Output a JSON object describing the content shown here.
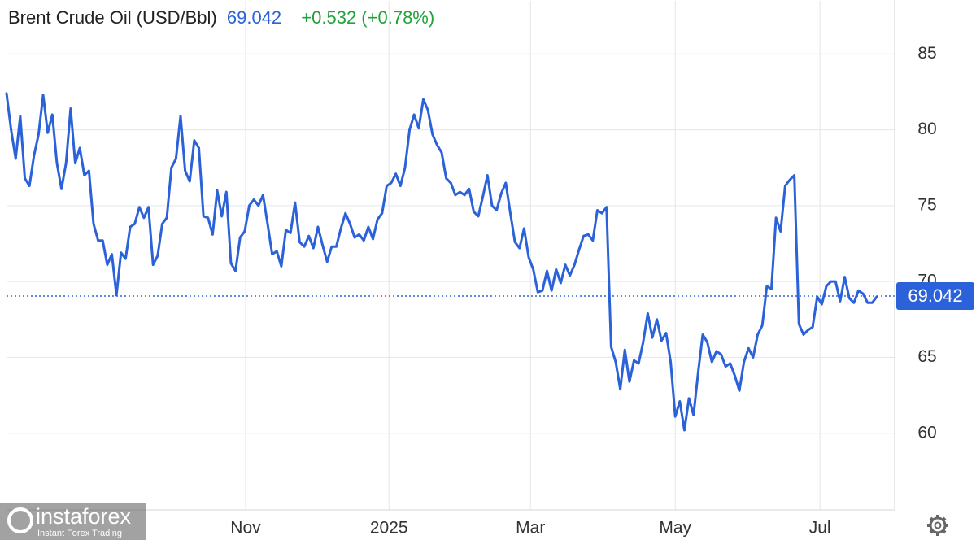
{
  "chart_data": {
    "type": "line",
    "title": "Brent Crude Oil (USD/Bbl)",
    "last_price": 69.042,
    "change": "+0.532 (+0.78%)",
    "watermark": {
      "brand": "instaforex",
      "tagline": "Instant Forex Trading"
    },
    "xlim": [
      0,
      190
    ],
    "xticks": [
      {
        "value": 52.2,
        "label": "Nov"
      },
      {
        "value": 83.5,
        "label": "2025"
      },
      {
        "value": 114.4,
        "label": "Mar"
      },
      {
        "value": 146,
        "label": "May"
      },
      {
        "value": 177.6,
        "label": "Jul"
      }
    ],
    "ylim": [
      55,
      88.5
    ],
    "yticks": [
      60,
      65,
      70,
      75,
      80,
      85
    ],
    "grid": true,
    "series": [
      {
        "name": "Brent Crude Oil",
        "color": "#2b62d9",
        "values": [
          82.4,
          80.0,
          78.1,
          80.9,
          76.8,
          76.3,
          78.3,
          79.7,
          82.3,
          79.8,
          81.0,
          77.8,
          76.1,
          77.8,
          81.4,
          77.8,
          78.8,
          77.0,
          77.3,
          73.8,
          72.7,
          72.7,
          71.1,
          71.8,
          69.1,
          71.9,
          71.5,
          73.6,
          73.8,
          74.9,
          74.2,
          74.9,
          71.1,
          71.7,
          73.8,
          74.2,
          77.5,
          78.1,
          80.9,
          77.3,
          76.6,
          79.3,
          78.8,
          74.3,
          74.2,
          73.1,
          76.0,
          74.3,
          75.9,
          71.2,
          70.7,
          72.9,
          73.3,
          75.0,
          75.4,
          75.0,
          75.7,
          73.8,
          71.8,
          72.0,
          71.0,
          73.4,
          73.2,
          75.2,
          72.6,
          72.3,
          73.0,
          72.2,
          73.6,
          72.4,
          71.3,
          72.3,
          72.3,
          73.5,
          74.5,
          73.8,
          72.9,
          73.1,
          72.7,
          73.6,
          72.8,
          74.1,
          74.5,
          76.3,
          76.5,
          77.1,
          76.3,
          77.5,
          80.0,
          81.0,
          80.1,
          82.0,
          81.3,
          79.7,
          79.0,
          78.5,
          76.8,
          76.5,
          75.7,
          75.9,
          75.7,
          76.1,
          74.6,
          74.3,
          75.6,
          77.0,
          75.0,
          74.7,
          75.8,
          76.5,
          74.5,
          72.6,
          72.2,
          73.5,
          71.6,
          70.8,
          69.3,
          69.4,
          70.7,
          69.4,
          70.8,
          69.9,
          71.1,
          70.4,
          71.1,
          72.1,
          73.0,
          73.1,
          72.7,
          74.7,
          74.5,
          74.9,
          65.7,
          64.7,
          62.9,
          65.5,
          63.4,
          64.8,
          64.6,
          66.0,
          67.9,
          66.3,
          67.5,
          66.1,
          66.6,
          64.7,
          61.1,
          62.1,
          60.2,
          62.3,
          61.2,
          64.0,
          66.5,
          66.0,
          64.7,
          65.4,
          65.2,
          64.4,
          64.6,
          63.8,
          62.8,
          64.7,
          65.6,
          65.0,
          66.5,
          67.1,
          69.7,
          69.5,
          74.2,
          73.3,
          76.3,
          76.7,
          77.0,
          67.2,
          66.5,
          66.8,
          67.0,
          69.0,
          68.5,
          69.7,
          70.0,
          70.0,
          68.7,
          70.3,
          68.9,
          68.6,
          69.4,
          69.2,
          68.6,
          68.6,
          69.0
        ]
      }
    ]
  }
}
